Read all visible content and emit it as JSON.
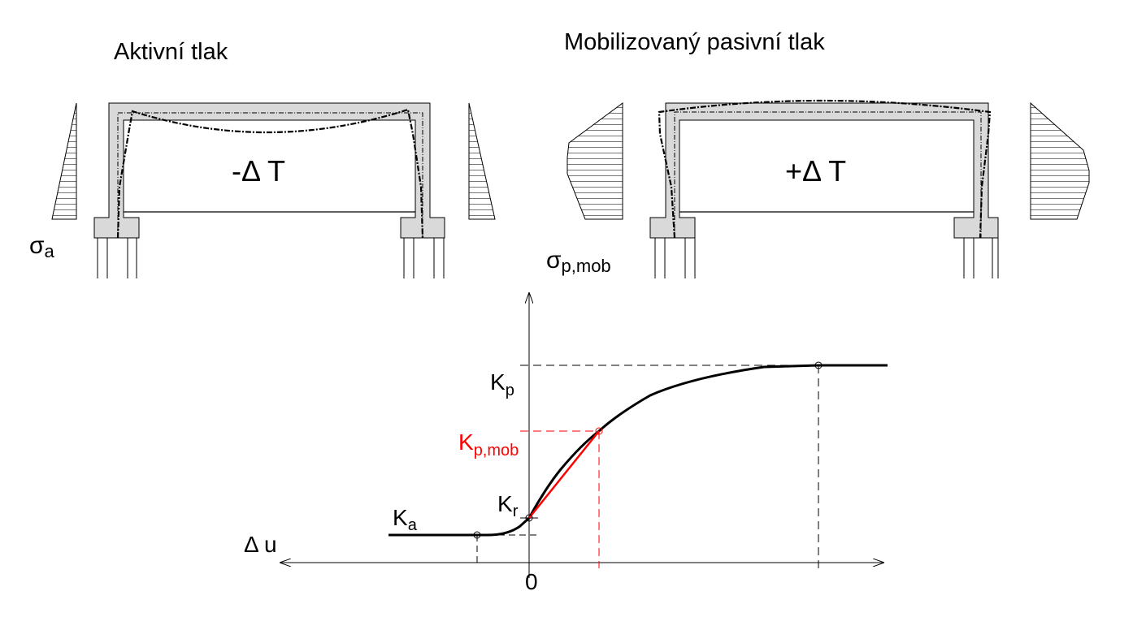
{
  "titles": {
    "active": "Aktivní tlak",
    "passive": "Mobilizovaný pasivní tlak"
  },
  "frames": {
    "left_temp": "-Δ T",
    "right_temp": "+Δ T"
  },
  "stress_labels": {
    "active_symbol": "σ",
    "active_sub": "a",
    "passive_symbol": "σ",
    "passive_sub": "p,mob"
  },
  "graph": {
    "x_axis_label": "Δ u",
    "origin_label": "0",
    "kp": {
      "main": "K",
      "sub": "p"
    },
    "kpmob": {
      "main": "K",
      "sub": "p,mob"
    },
    "kr": {
      "main": "K",
      "sub": "r"
    },
    "ka": {
      "main": "K",
      "sub": "a"
    }
  },
  "colors": {
    "line": "#000000",
    "concrete_fill": "#d9d9d9",
    "highlight": "#ff0000"
  }
}
